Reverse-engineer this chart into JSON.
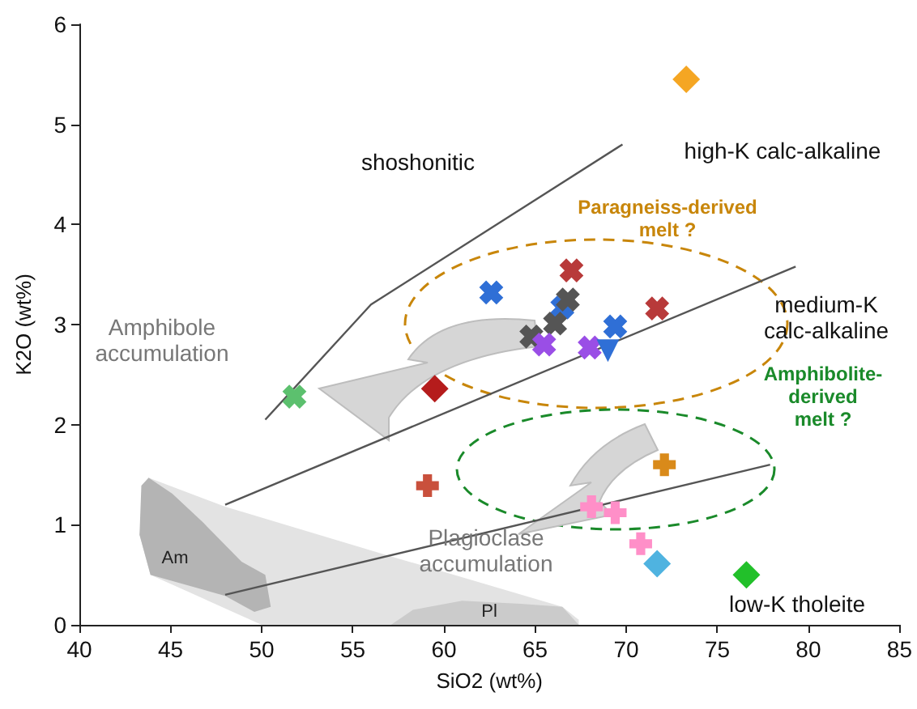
{
  "chart_data": {
    "type": "scatter",
    "xlabel": "SiO2 (wt%)",
    "ylabel": "K2O (wt%)",
    "xlim": [
      40,
      85
    ],
    "xticks": [
      40,
      45,
      50,
      55,
      60,
      65,
      70,
      75,
      80,
      85
    ],
    "ylim": [
      0,
      6
    ],
    "yticks": [
      0,
      1,
      2,
      3,
      4,
      5,
      6
    ],
    "grid": false,
    "series": [
      {
        "type": "area",
        "color": "#e3e3e3",
        "x": [
          43.8,
          48,
          56.8,
          66.5,
          67.4,
          67.4,
          50,
          43.9,
          43.3
        ],
        "values": [
          1.47,
          1.18,
          0.7,
          0.18,
          0.05,
          0,
          0,
          0.5,
          0.9
        ]
      },
      {
        "type": "area",
        "color": "#b4b4b4",
        "x": [
          43.4,
          43.8,
          45.1,
          46.8,
          48.9,
          50.2,
          50.5,
          49.6,
          48,
          43.9,
          43.3
        ],
        "values": [
          1.39,
          1.47,
          1.31,
          1.02,
          0.63,
          0.5,
          0.18,
          0.13,
          0.29,
          0.5,
          0.9
        ]
      },
      {
        "type": "area",
        "color": "#cbcbcb",
        "x": [
          57.1,
          58.3,
          61,
          64.2,
          66.5,
          67.4
        ],
        "values": [
          0,
          0.15,
          0.24,
          0.21,
          0.18,
          0
        ]
      },
      {
        "type": "line",
        "color": "#555555",
        "marker": "none",
        "x": [
          50.2,
          56,
          69.8
        ],
        "values": [
          2.05,
          3.2,
          4.8
        ]
      },
      {
        "type": "line",
        "color": "#555555",
        "marker": "none",
        "x": [
          48,
          79.3
        ],
        "values": [
          1.2,
          3.58
        ]
      },
      {
        "type": "line",
        "color": "#555555",
        "marker": "none",
        "x": [
          48,
          77.9
        ],
        "values": [
          0.3,
          1.6
        ]
      },
      {
        "color": "#f5a623",
        "marker": "diamond",
        "x": [
          73.3
        ],
        "values": [
          5.45
        ]
      },
      {
        "color": "#2f6fd6",
        "marker": "cross",
        "x": [
          62.6,
          66.5,
          69.4
        ],
        "values": [
          3.32,
          3.17,
          2.98
        ]
      },
      {
        "color": "#b83a3a",
        "marker": "cross",
        "x": [
          67.0,
          71.7
        ],
        "values": [
          3.54,
          3.16
        ]
      },
      {
        "color": "#555555",
        "marker": "cross",
        "x": [
          64.8,
          66.1,
          66.8
        ],
        "values": [
          2.88,
          3.01,
          3.25
        ]
      },
      {
        "color": "#9a4ee6",
        "marker": "cross",
        "x": [
          65.5,
          68.0
        ],
        "values": [
          2.8,
          2.77
        ]
      },
      {
        "color": "#2f6fd6",
        "marker": "triangle",
        "x": [
          69.0
        ],
        "values": [
          2.74
        ]
      },
      {
        "color": "#b51c1c",
        "marker": "diamond",
        "x": [
          59.5
        ],
        "values": [
          2.36
        ]
      },
      {
        "color": "#5cc06e",
        "marker": "cross",
        "x": [
          51.8
        ],
        "values": [
          2.28
        ]
      },
      {
        "color": "#c9503c",
        "marker": "plus",
        "x": [
          59.1
        ],
        "values": [
          1.39
        ]
      },
      {
        "color": "#d98a1a",
        "marker": "plus",
        "x": [
          72.1
        ],
        "values": [
          1.6
        ]
      },
      {
        "color": "#ff8fc8",
        "marker": "plus",
        "x": [
          68.1,
          69.4,
          70.8
        ],
        "values": [
          1.18,
          1.12,
          0.81
        ]
      },
      {
        "color": "#4fb3e0",
        "marker": "diamond",
        "x": [
          71.7
        ],
        "values": [
          0.61
        ]
      },
      {
        "color": "#22c02a",
        "marker": "diamond",
        "x": [
          76.6
        ],
        "values": [
          0.5
        ]
      }
    ],
    "annotations": [
      "shoshonitic",
      "high-K calc-alkaline",
      "Paragneiss-derived\nmelt ?",
      "medium-K\ncalc-alkaline",
      "Amphibolite-\nderived\nmelt ?",
      "Amphibole\naccumulation",
      "Plagioclase\naccumulation",
      "low-K tholeite",
      "Am",
      "Pl"
    ]
  }
}
